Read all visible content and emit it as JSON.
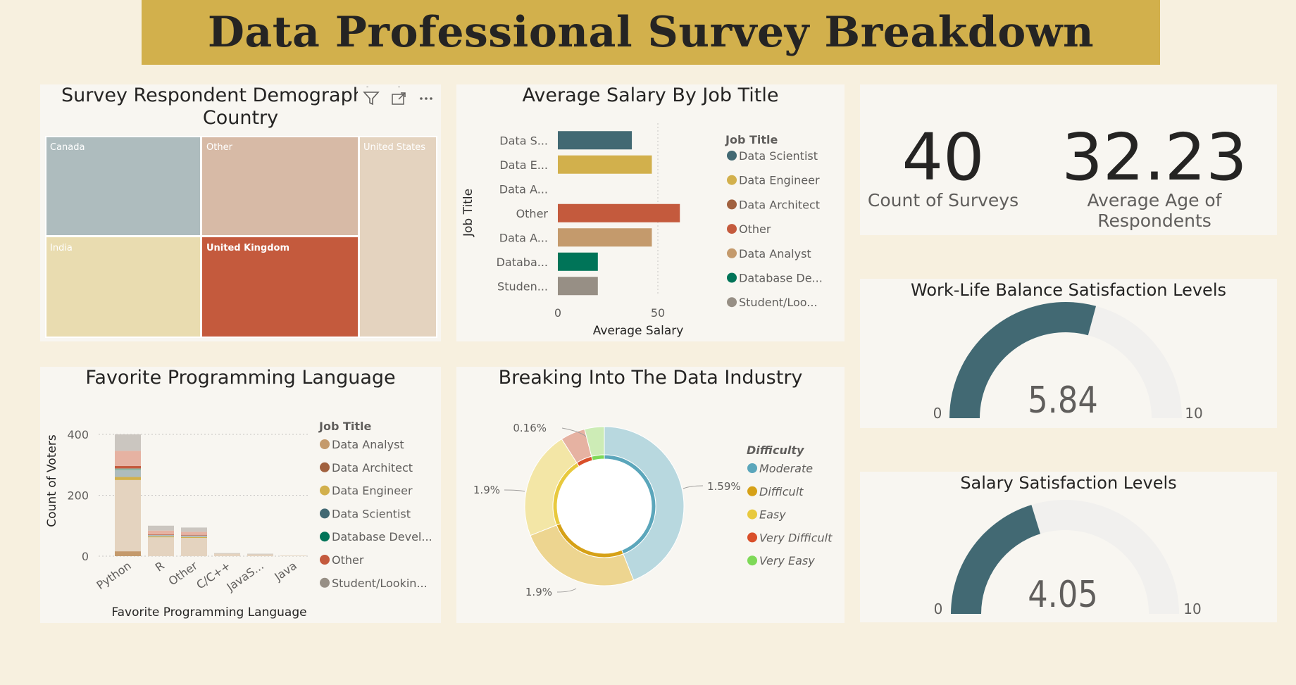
{
  "page": {
    "title": "Data Professional Survey Breakdown"
  },
  "colors": {
    "background": "#f7f0df",
    "banner": "#d2b04c",
    "card": "#f8f6f1",
    "gauge_fill": "#426973",
    "gauge_track": "#f1f0ee"
  },
  "treemap": {
    "title_line1": "Survey Respondent Demographics by",
    "title_line2": "Country",
    "toolbar_icons": [
      "filter-icon",
      "focus-mode-icon",
      "more-options-icon"
    ],
    "items": [
      {
        "label": "Canada",
        "color": "#aebcbe"
      },
      {
        "label": "Other",
        "color": "#d7baa6"
      },
      {
        "label": "United States",
        "color": "#e4d3bf"
      },
      {
        "label": "India",
        "color": "#e9dcb0"
      },
      {
        "label": "United Kingdom",
        "color": "#c45a3d"
      }
    ]
  },
  "salary_chart": {
    "title": "Average Salary By Job Title",
    "chart_data": {
      "type": "bar",
      "orientation": "horizontal",
      "categories": [
        "Data S...",
        "Data E...",
        "Data A...",
        "Other",
        "Data A...",
        "Databa...",
        "Studen..."
      ],
      "values": [
        37,
        47,
        0,
        61,
        47,
        20,
        20
      ],
      "colors": [
        "#426973",
        "#d2b04c",
        "#a1613f",
        "#c45a3d",
        "#c49a6c",
        "#007458",
        "#978f85"
      ],
      "xlabel": "Average Salary",
      "ylabel": "Job Title",
      "xticks": [
        0,
        50
      ],
      "xlim": [
        0,
        65
      ],
      "grid": true,
      "legend_title": "Job Title",
      "legend": [
        {
          "name": "Data Scientist",
          "color": "#426973"
        },
        {
          "name": "Data Engineer",
          "color": "#d2b04c"
        },
        {
          "name": "Data Architect",
          "color": "#a1613f"
        },
        {
          "name": "Other",
          "color": "#c45a3d"
        },
        {
          "name": "Data Analyst",
          "color": "#c49a6c"
        },
        {
          "name": "Database De...",
          "color": "#007458"
        },
        {
          "name": "Student/Loo...",
          "color": "#978f85"
        }
      ],
      "legend_position": "right"
    }
  },
  "kpis": {
    "count_value": "40",
    "count_label": "Count of Surveys",
    "age_value": "32.23",
    "age_label": "Average Age of Respondents"
  },
  "gauge_wlb": {
    "title": "Work-Life Balance Satisfaction Levels",
    "value": 5.84,
    "value_text": "5.84",
    "min": "0",
    "max": "10"
  },
  "gauge_salary": {
    "title": "Salary Satisfaction Levels",
    "value": 4.05,
    "value_text": "4.05",
    "min": "0",
    "max": "10"
  },
  "language_chart": {
    "title": "Favorite Programming Language",
    "chart_data": {
      "type": "bar",
      "stacked": true,
      "categories": [
        "Python",
        "R",
        "Other",
        "C/C++",
        "JavaS...",
        "Java"
      ],
      "series": [
        {
          "name": "Data Analyst",
          "color": "#c49a6c",
          "values": [
            16,
            0,
            0,
            0,
            0,
            0
          ]
        },
        {
          "name": "Data Analyst",
          "color": "#e4d3bf",
          "values": [
            234,
            62,
            60,
            8,
            6,
            2
          ]
        },
        {
          "name": "Data Engineer",
          "color": "#d2b04c",
          "values": [
            10,
            3,
            3,
            0,
            0,
            0
          ]
        },
        {
          "name": "Data Scientist",
          "color": "#aebcbe",
          "values": [
            22,
            5,
            5,
            0,
            0,
            0
          ]
        },
        {
          "name": "Database Developer",
          "color": "#8fb5a4",
          "values": [
            6,
            0,
            0,
            0,
            0,
            0
          ]
        },
        {
          "name": "Other",
          "color": "#c45a3d",
          "values": [
            8,
            2,
            2,
            0,
            0,
            0
          ]
        },
        {
          "name": "Other",
          "color": "#e6b2a2",
          "values": [
            50,
            12,
            10,
            0,
            0,
            0
          ]
        },
        {
          "name": "Student/Looking",
          "color": "#cbc6c0",
          "values": [
            54,
            16,
            14,
            2,
            2,
            0
          ]
        }
      ],
      "xlabel": "Favorite Programming Language",
      "ylabel": "Count of Voters",
      "yticks": [
        0,
        200,
        400
      ],
      "ylim": [
        0,
        440
      ],
      "grid": true,
      "legend_title": "Job Title",
      "legend": [
        {
          "name": "Data Analyst",
          "color": "#c49a6c"
        },
        {
          "name": "Data Architect",
          "color": "#a1613f"
        },
        {
          "name": "Data Engineer",
          "color": "#d2b04c"
        },
        {
          "name": "Data Scientist",
          "color": "#426973"
        },
        {
          "name": "Database Devel...",
          "color": "#007458"
        },
        {
          "name": "Other",
          "color": "#c45a3d"
        },
        {
          "name": "Student/Lookin...",
          "color": "#978f85"
        }
      ],
      "legend_position": "right"
    }
  },
  "donut_chart": {
    "title": "Breaking Into The Data Industry",
    "chart_data": {
      "type": "pie",
      "donut": true,
      "legend_title": "Difficulty",
      "legend": [
        {
          "name": "Moderate",
          "color": "#5ba6bb"
        },
        {
          "name": "Difficult",
          "color": "#d6a117"
        },
        {
          "name": "Easy",
          "color": "#e8c93e"
        },
        {
          "name": "Very Difficult",
          "color": "#d94f2a"
        },
        {
          "name": "Very Easy",
          "color": "#7ed957"
        }
      ],
      "outer_slices": [
        {
          "value": 44,
          "color": "#b8d8df"
        },
        {
          "value": 25,
          "color": "#edd590"
        },
        {
          "value": 22,
          "color": "#f3e6a6"
        },
        {
          "value": 5,
          "color": "#e6b2a2"
        },
        {
          "value": 4,
          "color": "#cdecb6"
        }
      ],
      "inner_slices": [
        {
          "value": 44,
          "color": "#5ba6bb"
        },
        {
          "value": 25,
          "color": "#d6a117"
        },
        {
          "value": 22,
          "color": "#e8c93e"
        },
        {
          "value": 5,
          "color": "#d94f2a"
        },
        {
          "value": 4,
          "color": "#7ed957"
        }
      ],
      "data_labels": [
        "1.59%",
        "1.9%",
        "1.9%",
        "0.16%"
      ]
    }
  }
}
